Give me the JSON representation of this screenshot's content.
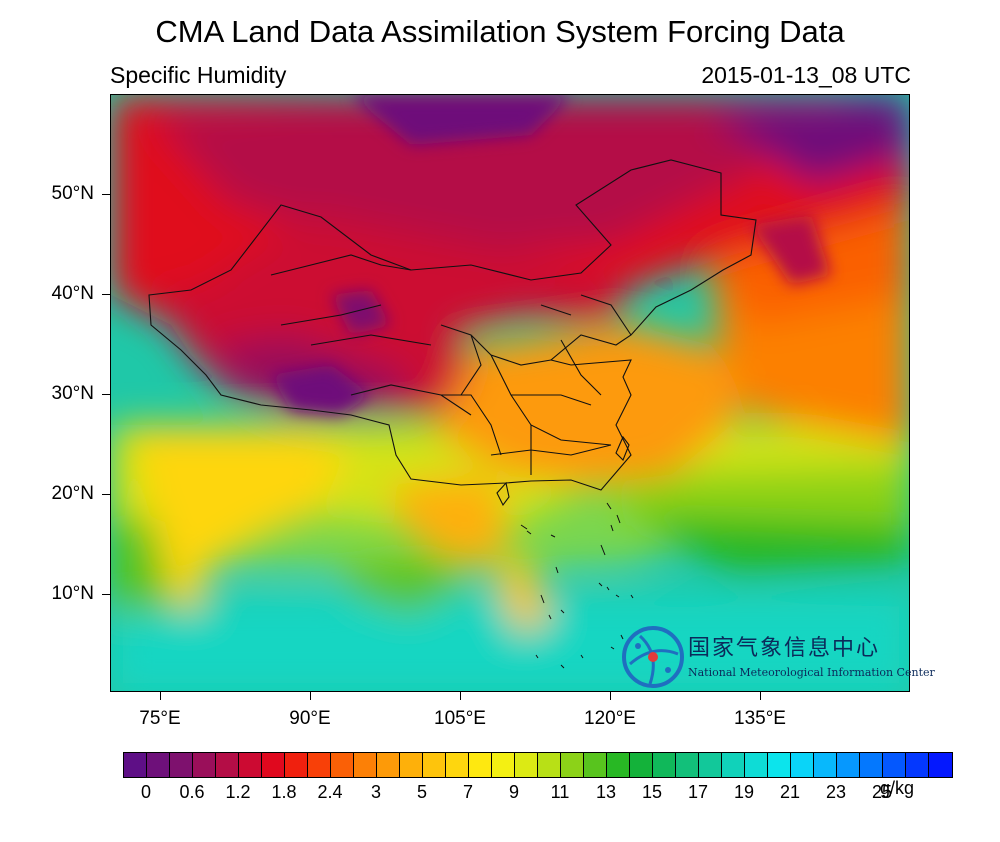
{
  "title": "CMA Land Data Assimilation System Forcing Data",
  "variable": "Specific Humidity",
  "timestamp": "2015-01-13_08 UTC",
  "map": {
    "lat_labels": [
      "50°N",
      "40°N",
      "30°N",
      "20°N",
      "10°N"
    ],
    "lon_labels": [
      "75°E",
      "90°E",
      "105°E",
      "120°E",
      "135°E"
    ],
    "lat_values": [
      50,
      40,
      30,
      20,
      10
    ],
    "lon_values": [
      75,
      90,
      105,
      120,
      135
    ],
    "lat_range": [
      0.3,
      59.8
    ],
    "lon_range": [
      70,
      150
    ]
  },
  "colorbar": {
    "units": "g/kg",
    "labels": [
      "0",
      "0.6",
      "1.2",
      "1.8",
      "2.4",
      "3",
      "5",
      "7",
      "9",
      "11",
      "13",
      "15",
      "17",
      "19",
      "21",
      "23",
      "25"
    ],
    "colors": [
      "#5e0f86",
      "#6e107a",
      "#7e116e",
      "#9a0f5a",
      "#b40d46",
      "#cc0a32",
      "#e0081e",
      "#f0200e",
      "#f84008",
      "#fa6006",
      "#fc8006",
      "#fd9a08",
      "#feb00a",
      "#fec40c",
      "#fed60e",
      "#fee810",
      "#f4f012",
      "#dcea14",
      "#b8e016",
      "#8cd218",
      "#58c41e",
      "#28b824",
      "#14b23a",
      "#10b85a",
      "#12c07a",
      "#12c89a",
      "#10d2ba",
      "#0edcd6",
      "#0ce4ec",
      "#0ad4f8",
      "#08b8fc",
      "#0698fe",
      "#0478fe",
      "#0458fe",
      "#0438fe",
      "#0418fe"
    ]
  },
  "logo": {
    "name_cn": "国家气象信息中心",
    "name_en": "National Meteorological Information Center"
  }
}
